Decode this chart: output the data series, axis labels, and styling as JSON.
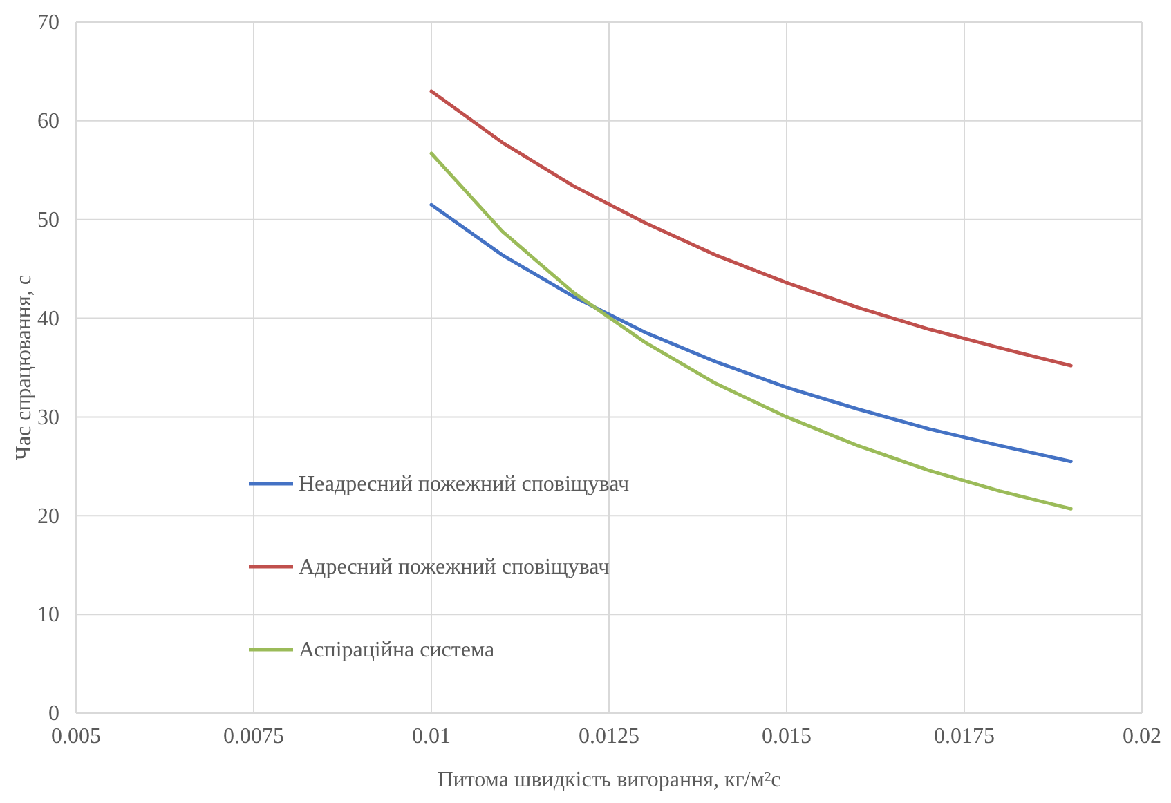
{
  "chart_data": {
    "type": "line",
    "xlabel": "Питома швидкість вигорання, кг/м²с",
    "ylabel": "Час спрацювання, с",
    "x": [
      0.01,
      0.011,
      0.012,
      0.013,
      0.014,
      0.015,
      0.016,
      0.017,
      0.018,
      0.019
    ],
    "series": [
      {
        "name": "Неадресний пожежний сповіщувач",
        "color": "#4472c4",
        "values": [
          51.5,
          46.4,
          42.2,
          38.6,
          35.6,
          33.0,
          30.8,
          28.8,
          27.1,
          25.5
        ]
      },
      {
        "name": "Адресний пожежний сповіщувач",
        "color": "#c0504d",
        "values": [
          63.0,
          57.8,
          53.4,
          49.7,
          46.4,
          43.6,
          41.1,
          38.9,
          37.0,
          35.2
        ]
      },
      {
        "name": "Аспіраційна система",
        "color": "#9bbb59",
        "values": [
          56.7,
          48.8,
          42.6,
          37.6,
          33.4,
          30.0,
          27.1,
          24.6,
          22.5,
          20.7
        ]
      }
    ],
    "xlim": [
      0.005,
      0.02
    ],
    "xticks": [
      0.005,
      0.0075,
      0.01,
      0.0125,
      0.015,
      0.0175,
      0.02
    ],
    "ylim": [
      0,
      70
    ],
    "yticks": [
      0,
      10,
      20,
      30,
      40,
      50,
      60,
      70
    ],
    "grid": true,
    "legend": "left",
    "marker": "none",
    "line_style": "solid"
  }
}
